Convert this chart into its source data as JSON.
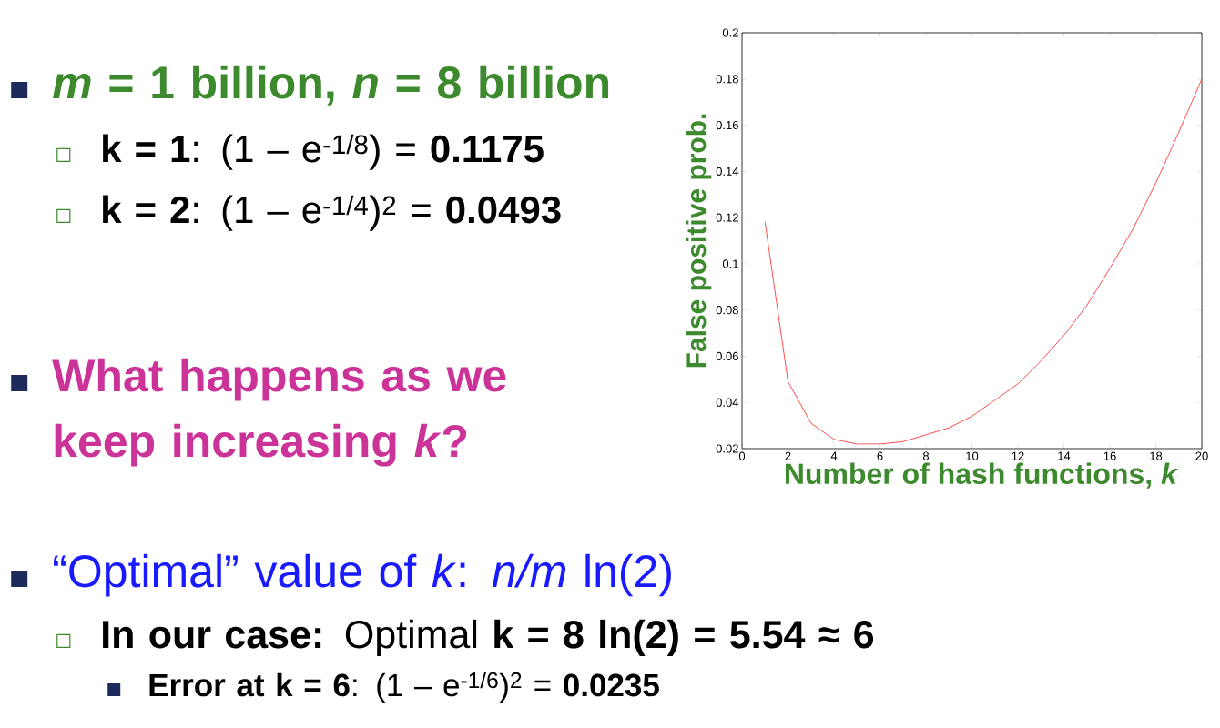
{
  "chart_data": {
    "type": "line",
    "xlabel": "Number of hash functions, *k*",
    "ylabel": "False positive prob.",
    "x": [
      1,
      2,
      3,
      4,
      5,
      6,
      7,
      8,
      9,
      10,
      11,
      12,
      13,
      14,
      15,
      16,
      17,
      18,
      19,
      20
    ],
    "values": [
      0.118,
      0.049,
      0.031,
      0.024,
      0.022,
      0.022,
      0.023,
      0.026,
      0.029,
      0.034,
      0.041,
      0.048,
      0.058,
      0.069,
      0.082,
      0.098,
      0.115,
      0.135,
      0.157,
      0.18
    ],
    "color": "#ff3b3b",
    "xlim": [
      0,
      20
    ],
    "ylim": [
      0.02,
      0.2
    ],
    "xticks": [
      0,
      2,
      4,
      6,
      8,
      10,
      12,
      14,
      16,
      18,
      20
    ],
    "yticks": [
      0.02,
      0.04,
      0.06,
      0.08,
      0.1,
      0.12,
      0.14,
      0.16,
      0.18,
      0.2
    ],
    "annotations": [
      "*m* = 1 billion, *n* = 8 billion",
      "**k = 1**: (1 – e$^{-1/8}$) = **0.1175**",
      "**k = 2**: (1 – e$^{-1/4}$)$^{2}$ = **0.0493**",
      "What happens as we keep increasing *k*?",
      "“Optimal” value of *k*: *n/m* ln(2)",
      "**In our case:** Optimal **k = 8 ln(2) = 5.54 ≈ 6**",
      "**Error at k = 6**: (1 – e$^{-1/6}$)$^{2}$ = **0.0235**"
    ]
  }
}
